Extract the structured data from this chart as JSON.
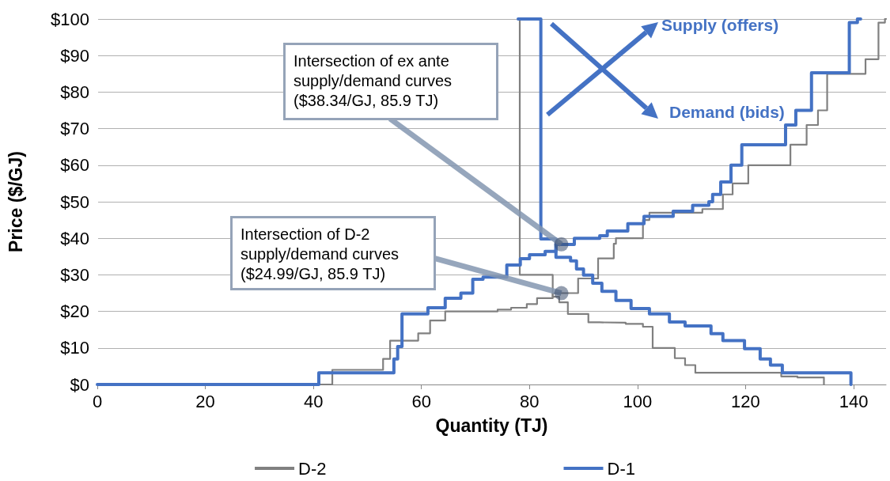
{
  "chart_data": {
    "type": "step",
    "xlabel": "Quantity (TJ)",
    "ylabel": "Price ($/GJ)",
    "xlim": [
      0,
      146
    ],
    "xticks": [
      0,
      20,
      40,
      60,
      80,
      100,
      120,
      140
    ],
    "ylim": [
      0,
      100
    ],
    "yticks": [
      {
        "value": 0,
        "label": "$0"
      },
      {
        "value": 10,
        "label": "$10"
      },
      {
        "value": 20,
        "label": "$20"
      },
      {
        "value": 30,
        "label": "$30"
      },
      {
        "value": 40,
        "label": "$40"
      },
      {
        "value": 50,
        "label": "$50"
      },
      {
        "value": 60,
        "label": "$60"
      },
      {
        "value": 70,
        "label": "$70"
      },
      {
        "value": 80,
        "label": "$80"
      },
      {
        "value": 90,
        "label": "$90"
      },
      {
        "value": 100,
        "label": "$100"
      }
    ],
    "grid": "y",
    "legend": "bottom",
    "marker": "none",
    "line_style": "solid",
    "series": [
      {
        "name": "D-2",
        "color": "#808080",
        "x": [
          0,
          43.5,
          52.9,
          54.2,
          59.4,
          61.6,
          64.4,
          74.1,
          76.6,
          79.5,
          81.4,
          84.3,
          89,
          92.7,
          95.6,
          96,
          101,
          102.2,
          112,
          115.8,
          117.6,
          120.5,
          128.3,
          131.3,
          133.4,
          135.1,
          142.2,
          144.6,
          145.8,
          146
        ],
        "values": [
          0,
          4,
          7,
          12,
          14,
          17.5,
          20,
          20.5,
          21,
          22,
          23.6,
          25,
          29,
          34.5,
          38.5,
          40,
          45,
          47,
          48,
          52,
          55,
          60,
          65.6,
          71,
          75,
          85,
          89,
          99,
          100,
          100
        ]
      },
      {
        "color": "#808080",
        "x": [
          78.2,
          78.2,
          84.3,
          85.5,
          87.1,
          90.9,
          93,
          97.8,
          101,
          102.8,
          106.9,
          108.8,
          110.7,
          126.6,
          129.6,
          134.5
        ],
        "values": [
          100,
          30,
          24,
          22.5,
          19.3,
          17,
          16.9,
          16.6,
          15.8,
          10,
          7.2,
          5.3,
          3.2,
          2.2,
          1.9,
          0
        ]
      },
      {
        "name": "D-1",
        "color": "#4472c4",
        "x": [
          0,
          41,
          54.9,
          55.6,
          56.4,
          61.2,
          64.4,
          67.3,
          69.5,
          71.4,
          75.8,
          78.3,
          80,
          82.9,
          84.9,
          88.3,
          93,
          94.4,
          98.2,
          101.2,
          106.6,
          110.2,
          113.2,
          113.9,
          115.4,
          117.3,
          119.3,
          127.4,
          129.3,
          132.2,
          139.2,
          140.7,
          141.3
        ],
        "values": [
          0,
          3.2,
          7,
          10.4,
          19.3,
          21,
          23.6,
          25,
          28.8,
          29.4,
          32.7,
          34.4,
          35.5,
          36.4,
          38.3,
          40,
          40.7,
          42,
          44,
          46,
          47.4,
          49,
          50,
          52,
          55.4,
          60,
          65.6,
          71,
          75,
          85.3,
          99,
          100,
          100
        ]
      },
      {
        "color": "#4472c4",
        "x": [
          77.9,
          82.1,
          84.9,
          87.6,
          88.7,
          90,
          91.7,
          93.4,
          96,
          98.8,
          102.2,
          105.9,
          108.8,
          113.6,
          115.8,
          119.8,
          122.7,
          124.6,
          126.8,
          139.5
        ],
        "values": [
          100,
          39.8,
          34.8,
          33.8,
          31.6,
          29.9,
          27.7,
          25.5,
          23,
          20.8,
          19.3,
          17.1,
          16,
          13.9,
          12,
          9.8,
          7,
          5.3,
          3.2,
          0
        ]
      }
    ],
    "annotations": [
      {
        "text": "Intersection of ex ante\nsupply/demand curves\n($38.34/GJ, 85.9 TJ)",
        "x": 85.9,
        "y": 38.34
      },
      {
        "text": "Intersection of D-2\nsupply/demand curves\n($24.99/GJ, 85.9 TJ)",
        "x": 85.9,
        "y": 24.99
      },
      "Supply (offers)",
      "Demand (bids)"
    ]
  }
}
